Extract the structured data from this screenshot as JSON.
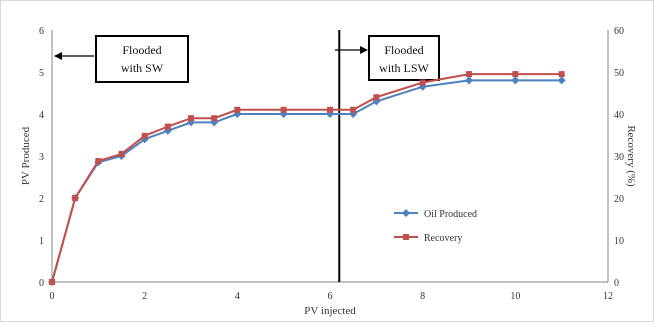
{
  "chart_data": {
    "type": "line",
    "xlabel": "PV injected",
    "ylabel_left": "PV Produced",
    "ylabel_right": "Recovery (%)",
    "x_ticks": [
      "0",
      "2",
      "4",
      "6",
      "8",
      "10",
      "12"
    ],
    "y_left_ticks": [
      "0",
      "1",
      "2",
      "3",
      "4",
      "5",
      "6"
    ],
    "y_right_ticks": [
      "0",
      "10",
      "20",
      "30",
      "40",
      "50",
      "60"
    ],
    "xlim": [
      0,
      12
    ],
    "ylim_left": [
      0,
      6
    ],
    "ylim_right": [
      0,
      60
    ],
    "grid": false,
    "legend_position": "center-right",
    "series": [
      {
        "name": "Oil Produced",
        "axis": "left",
        "color": "#4f81bd",
        "marker": "diamond",
        "x": [
          0,
          0.5,
          1,
          1.5,
          2,
          2.5,
          3,
          3.5,
          4,
          5,
          6,
          6.5,
          7,
          8,
          9,
          10,
          11
        ],
        "y": [
          0,
          2.0,
          2.85,
          3.0,
          3.4,
          3.6,
          3.8,
          3.8,
          4.0,
          4.0,
          4.0,
          4.0,
          4.3,
          4.65,
          4.8,
          4.8,
          4.8
        ]
      },
      {
        "name": "Recovery",
        "axis": "right",
        "color": "#c0504d",
        "marker": "square",
        "x": [
          0,
          0.5,
          1,
          1.5,
          2,
          2.5,
          3,
          3.5,
          4,
          5,
          6,
          6.5,
          7,
          8,
          9,
          10,
          11
        ],
        "y": [
          0,
          20.0,
          28.8,
          30.5,
          34.8,
          37.0,
          39.0,
          39.0,
          41.0,
          41.0,
          41.0,
          41.0,
          44.0,
          47.5,
          49.5,
          49.5,
          49.5
        ]
      }
    ],
    "vertical_line": {
      "x": 6.2
    },
    "annotations": [
      {
        "text": "Flooded with SW",
        "lines": [
          "Flooded",
          "with SW"
        ]
      },
      {
        "text": "Flooded with LSW",
        "lines": [
          "Flooded",
          "with LSW"
        ]
      }
    ]
  }
}
